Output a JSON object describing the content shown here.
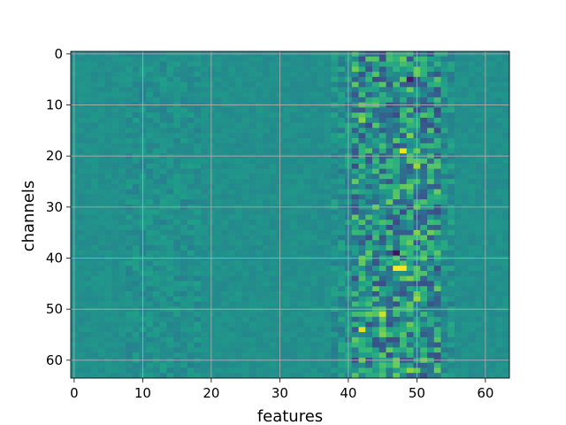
{
  "chart_data": {
    "type": "heatmap",
    "title": "",
    "xlabel": "features",
    "ylabel": "channels",
    "rows": 64,
    "cols": 64,
    "x_ticks": [
      0,
      10,
      20,
      30,
      40,
      50,
      60
    ],
    "y_ticks": [
      0,
      10,
      20,
      30,
      40,
      50,
      60
    ],
    "xlim": [
      -0.5,
      63.5
    ],
    "ylim": [
      63.5,
      -0.5
    ],
    "grid": true,
    "colormap": "viridis",
    "value_range": [
      -1,
      1
    ],
    "hot_cells": [
      {
        "row": 5,
        "col": 49,
        "value": -0.85
      },
      {
        "row": 13,
        "col": 42,
        "value": 0.65
      },
      {
        "row": 16,
        "col": 49,
        "value": 0.6
      },
      {
        "row": 19,
        "col": 48,
        "value": 0.95
      },
      {
        "row": 22,
        "col": 50,
        "value": 0.7
      },
      {
        "row": 26,
        "col": 49,
        "value": 0.55
      },
      {
        "row": 35,
        "col": 50,
        "value": 0.6
      },
      {
        "row": 35,
        "col": 52,
        "value": 0.55
      },
      {
        "row": 39,
        "col": 47,
        "value": -0.9
      },
      {
        "row": 42,
        "col": 47,
        "value": 1.0
      },
      {
        "row": 42,
        "col": 48,
        "value": 1.0
      },
      {
        "row": 44,
        "col": 49,
        "value": 0.6
      },
      {
        "row": 48,
        "col": 50,
        "value": 0.7
      },
      {
        "row": 51,
        "col": 45,
        "value": 0.85
      },
      {
        "row": 54,
        "col": 42,
        "value": 0.9
      },
      {
        "row": 55,
        "col": 45,
        "value": 0.6
      },
      {
        "row": 60,
        "col": 51,
        "value": 0.55
      },
      {
        "row": 62,
        "col": 49,
        "value": 0.65
      }
    ]
  }
}
